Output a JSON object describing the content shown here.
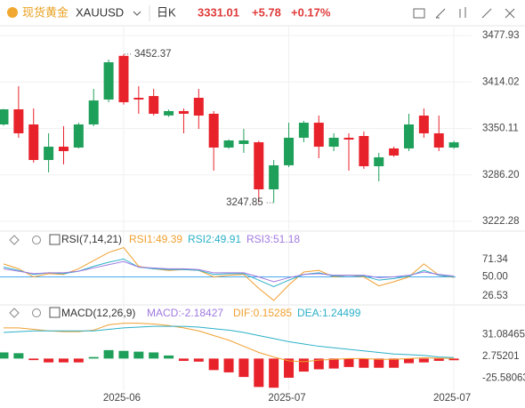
{
  "header": {
    "name": "现货黄金",
    "symbol": "XAUUSD",
    "period": "日K",
    "price": "3331.01",
    "change": "+5.78",
    "change_pct": "+0.17%"
  },
  "chart_data": [
    {
      "type": "candlestick",
      "up_color": "#1fa05a",
      "down_color": "#e8222b",
      "grid": true,
      "categories": [
        null,
        null,
        null,
        null,
        null,
        null,
        null,
        null,
        "2025-06",
        null,
        null,
        null,
        null,
        null,
        null,
        null,
        null,
        null,
        null,
        "2025-07",
        null,
        null,
        null,
        null,
        null,
        null,
        null,
        null,
        null,
        null,
        "2025-07"
      ],
      "open": [
        3355.6,
        3376.4,
        3355.6,
        3306.7,
        3325.0,
        3323.8,
        3355.6,
        3389.9,
        3450.0,
        3392.3,
        3394.7,
        3368.0,
        3374.0,
        3392.3,
        3370.3,
        3323.8,
        3328.7,
        3331.1,
        3266.3,
        3299.4,
        3337.3,
        3358.0,
        3325.0,
        3337.3,
        3339.7,
        3298.1,
        3322.6,
        3322.6,
        3367.8,
        3343.4,
        3323.8
      ],
      "high": [
        3377.0,
        3408.2,
        3377.6,
        3343.4,
        3353.2,
        3358.0,
        3404.5,
        3445.0,
        3452.37,
        3408.2,
        3404.5,
        3376.0,
        3377.6,
        3404.5,
        3374.0,
        3335.0,
        3349.5,
        3333.0,
        3306.7,
        3358.0,
        3360.5,
        3367.8,
        3343.4,
        3343.4,
        3345.8,
        3316.5,
        3325.0,
        3370.3,
        3377.6,
        3367.8,
        3333.0
      ],
      "low": [
        3354.0,
        3337.3,
        3303.0,
        3289.6,
        3300.6,
        3322.6,
        3353.2,
        3386.2,
        3383.0,
        3370.3,
        3367.8,
        3366.0,
        3343.4,
        3349.5,
        3292.0,
        3322.0,
        3316.5,
        3248.0,
        3247.85,
        3296.9,
        3331.1,
        3309.1,
        3318.9,
        3292.0,
        3294.5,
        3277.3,
        3311.0,
        3318.9,
        3337.3,
        3318.9,
        3322.0
      ],
      "close": [
        3376.4,
        3343.4,
        3306.7,
        3325.0,
        3318.9,
        3355.6,
        3388.6,
        3441.2,
        3386.2,
        3389.9,
        3370.3,
        3374.0,
        3370.3,
        3367.8,
        3323.8,
        3333.6,
        3333.6,
        3266.3,
        3299.4,
        3337.3,
        3358.0,
        3325.0,
        3337.3,
        3334.8,
        3298.1,
        3310.4,
        3312.8,
        3355.6,
        3343.4,
        3323.8,
        3331.01
      ],
      "annotations": [
        {
          "index": 8,
          "value": 3452.37
        },
        {
          "index": 18,
          "value": 3247.85
        }
      ],
      "ylim": [
        3211.27,
        3490.16
      ],
      "yticks": [
        3222.28,
        {
          "value": 3286.2,
          "label": "3286.20"
        },
        3350.11,
        3414.02,
        3477.93
      ]
    },
    {
      "type": "line",
      "title": "RSI(7,14,21)",
      "series": [
        {
          "name": "RSI1:49.39",
          "color": "#f0a030",
          "values": [
            66,
            60,
            50,
            54,
            53,
            60,
            70,
            80,
            86,
            63,
            60,
            58,
            59,
            58,
            50,
            52,
            53,
            36,
            21,
            40,
            56,
            58,
            50,
            52,
            50,
            39,
            44,
            50,
            66,
            52,
            49.39
          ]
        },
        {
          "name": "RSI2:49.91",
          "color": "#2bb0c8",
          "values": [
            62,
            58,
            53,
            55,
            54,
            57,
            63,
            68,
            72,
            62,
            60,
            59,
            59,
            58,
            53,
            54,
            54,
            46,
            38,
            46,
            53,
            55,
            51,
            52,
            51,
            46,
            48,
            51,
            58,
            52,
            49.91
          ]
        },
        {
          "name": "RSI3:51.18",
          "color": "#a07ae0",
          "values": [
            60,
            57,
            54,
            55,
            55,
            57,
            61,
            65,
            69,
            62,
            61,
            60,
            60,
            59,
            55,
            55,
            55,
            50,
            44,
            49,
            53,
            54,
            52,
            52,
            52,
            49,
            50,
            52,
            56,
            53,
            51.18
          ]
        }
      ],
      "ylim": [
        16.7,
        100.8
      ],
      "yticks": [
        26.53,
        {
          "value": 50,
          "label": "50.00"
        },
        71.34
      ],
      "mid_line_color": "#4aa8f0"
    },
    {
      "type": "macd",
      "title": "MACD(12,26,9)",
      "up_color": "#1fa05a",
      "down_color": "#e8222b",
      "histogram": {
        "name": "MACD:-2.18427",
        "values": [
          8,
          7,
          -2,
          -5,
          -5,
          -5,
          2,
          11,
          10,
          9,
          8,
          4,
          -3,
          -4,
          -15,
          -18,
          -24,
          -37,
          -38,
          -25,
          -17,
          -14,
          -13,
          -11,
          -12,
          -12,
          -12,
          -6,
          -5,
          -3,
          -2.18427
        ]
      },
      "series": [
        {
          "name": "DIF:0.15285",
          "color": "#f0a030",
          "values": [
            40,
            40,
            38,
            36,
            35,
            35,
            37,
            44,
            46,
            46,
            45,
            43,
            40,
            36,
            30,
            24,
            16,
            8,
            2,
            -3,
            -4,
            -2,
            -1,
            0,
            0,
            -1,
            -1,
            0,
            1,
            0.5,
            0.15285
          ]
        },
        {
          "name": "DEA:1.24499",
          "color": "#2bb0c8",
          "values": [
            34,
            35,
            36,
            36,
            36,
            36,
            36,
            38,
            40,
            41,
            42,
            42,
            42,
            41,
            39,
            37,
            34,
            30,
            26,
            22,
            19,
            16,
            14,
            12,
            10,
            8,
            6,
            5,
            4,
            2,
            1.24499
          ]
        }
      ],
      "ylim": [
        -42.4,
        61.8
      ],
      "yticks": [
        -25.58063,
        2.75201,
        31.08465
      ]
    }
  ]
}
